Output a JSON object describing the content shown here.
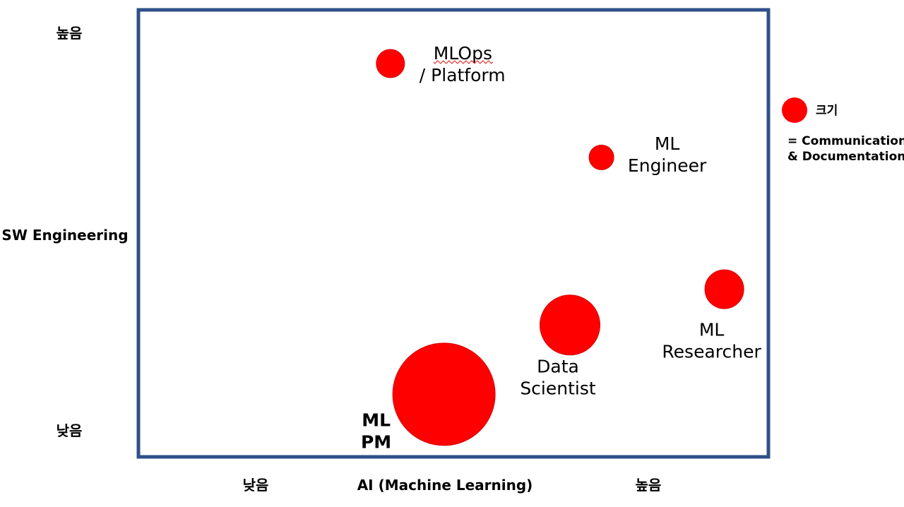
{
  "chart_data": {
    "type": "scatter",
    "subtype": "bubble",
    "title": "",
    "xlabel": "AI (Machine Learning)",
    "ylabel": "SW Engineering",
    "x_low_label": "낮음",
    "x_high_label": "높음",
    "y_low_label": "낮음",
    "y_high_label": "높음",
    "xlim": [
      0,
      100
    ],
    "ylim": [
      0,
      100
    ],
    "grid": false,
    "marker_color": "#ff0000",
    "frame_color": "#2f5089",
    "series": [
      {
        "name": "roles",
        "points": [
          {
            "id": "mlops",
            "label_lines": [
              "MLOps",
              "/ Platform"
            ],
            "x": 40,
            "y": 88,
            "size": 4,
            "bold": false
          },
          {
            "id": "ml-engineer",
            "label_lines": [
              "ML",
              "Engineer"
            ],
            "x": 73.5,
            "y": 67,
            "size": 3.5,
            "bold": false
          },
          {
            "id": "ml-researcher",
            "label_lines": [
              "ML",
              "Researcher"
            ],
            "x": 93,
            "y": 37.5,
            "size": 5.5,
            "bold": false
          },
          {
            "id": "data-scientist",
            "label_lines": [
              "Data",
              "Scientist"
            ],
            "x": 68.5,
            "y": 29.5,
            "size": 8.5,
            "bold": false
          },
          {
            "id": "ml-pm",
            "label_lines": [
              "ML",
              "PM"
            ],
            "x": 48.5,
            "y": 14,
            "size": 14.5,
            "bold": true
          }
        ]
      }
    ],
    "legend": {
      "position": "right",
      "marker_label": "크기",
      "description_lines": [
        "= Communication",
        "& Documentation"
      ]
    }
  }
}
